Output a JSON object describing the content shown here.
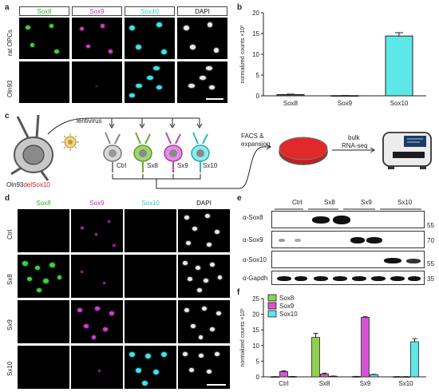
{
  "panel_labels": {
    "a": "a",
    "b": "b",
    "c": "c",
    "d": "d",
    "e": "e",
    "f": "f"
  },
  "colors": {
    "sox8": "#34d134",
    "sox9": "#d23cd2",
    "sox10": "#3ee3e6",
    "dapi": "#222222"
  },
  "panel_a": {
    "headers": [
      "Sox8",
      "Sox9",
      "Sox10",
      "DAPI"
    ],
    "rows": [
      "rat OPCs",
      "Oln93"
    ]
  },
  "panel_c": {
    "cell_line_prefix": "Oln93",
    "cell_line_suffix": "delSox10",
    "virus": "lentivirus",
    "groups": [
      "Ctrl",
      "Sx8",
      "Sx9",
      "Sx10"
    ],
    "facs": "FACS &",
    "facs2": "expansion",
    "bulk": "bulk",
    "bulk2": "RNA-seq"
  },
  "panel_d": {
    "headers": [
      "Sox8",
      "Sox9",
      "Sox10",
      "DAPI"
    ],
    "rows": [
      "Ctrl",
      "Sx8",
      "Sx9",
      "Sx10"
    ]
  },
  "panel_e": {
    "lanes": [
      "Ctrl",
      "Sx8",
      "Sx9",
      "Sx10"
    ],
    "rows": [
      "α-Sox8",
      "α-Sox9",
      "α-Sox10",
      "α-Gapdh"
    ],
    "markers": [
      "55",
      "70",
      "55",
      "35"
    ]
  },
  "chart_data": [
    {
      "type": "bar",
      "panel": "b",
      "categories": [
        "Sox8",
        "Sox9",
        "Sox10"
      ],
      "values": [
        0.3,
        0.05,
        14.4
      ],
      "errors": [
        0.1,
        0.02,
        0.8
      ],
      "colors": [
        "#555555",
        "#555555",
        "#5ee7e7"
      ],
      "ylabel": "normalized counts ×10³",
      "ylim": [
        0,
        20
      ],
      "yticks": [
        "0",
        "5",
        "10",
        "15",
        "20"
      ]
    },
    {
      "type": "bar",
      "panel": "f",
      "categories": [
        "Ctrl",
        "Sx8",
        "Sx9",
        "Sx10"
      ],
      "series": [
        {
          "name": "Sox8",
          "color": "#8fd14f",
          "values": [
            0.05,
            12.6,
            0.1,
            0.05
          ],
          "errors": [
            0.02,
            1.3,
            0.05,
            0.02
          ]
        },
        {
          "name": "Sox9",
          "color": "#d555d5",
          "values": [
            1.7,
            0.9,
            19.0,
            0.05
          ],
          "errors": [
            0.2,
            0.3,
            0.2,
            0.02
          ]
        },
        {
          "name": "Sox10",
          "color": "#5ee7e7",
          "values": [
            0.1,
            0.2,
            0.7,
            11.2
          ],
          "errors": [
            0.03,
            0.05,
            0.1,
            1.0
          ]
        }
      ],
      "ylabel": "normalized counts ×10³",
      "ylim": [
        0,
        25
      ],
      "yticks": [
        "0",
        "5",
        "10",
        "15",
        "20",
        "25"
      ]
    }
  ]
}
